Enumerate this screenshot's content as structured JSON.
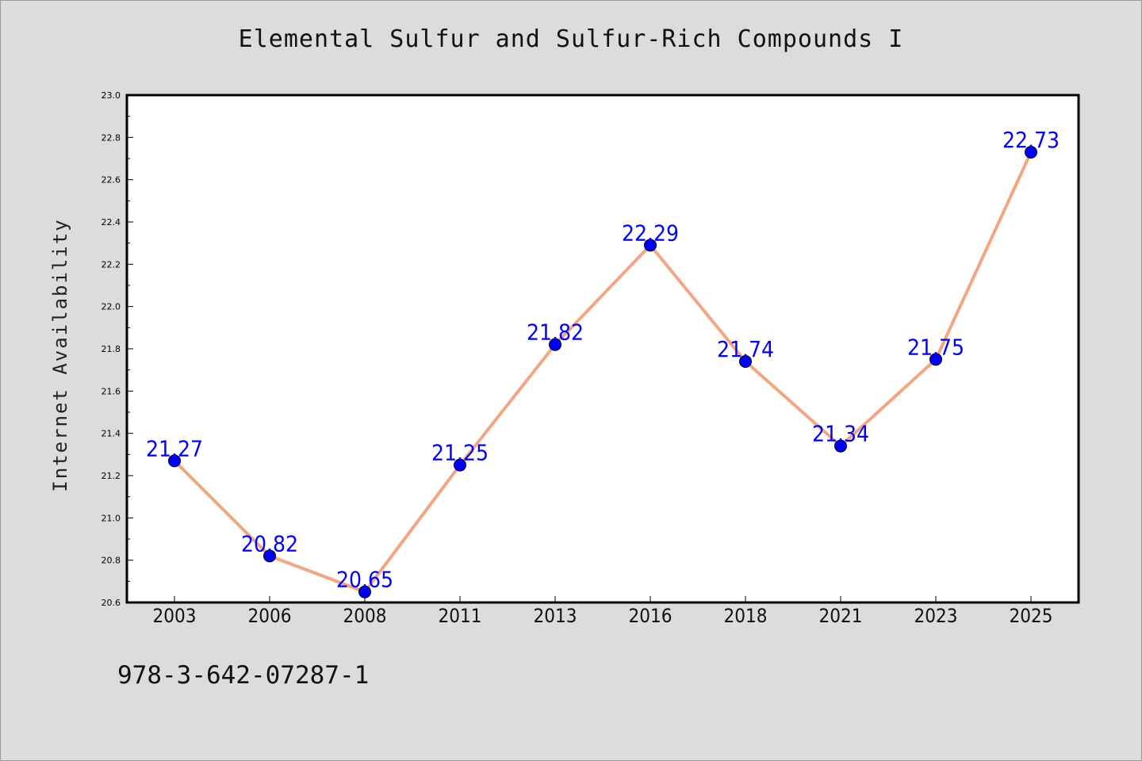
{
  "chart_data": {
    "type": "line",
    "title": "Elemental Sulfur and Sulfur-Rich Compounds I",
    "xlabel": "",
    "ylabel": "Internet Availability",
    "categories": [
      "2003",
      "2006",
      "2008",
      "2011",
      "2013",
      "2016",
      "2018",
      "2021",
      "2023",
      "2025"
    ],
    "series": [
      {
        "values": [
          21.27,
          20.82,
          20.65,
          21.25,
          21.82,
          22.29,
          21.74,
          21.34,
          21.75,
          22.73
        ],
        "data_labels": [
          "21.27",
          "20.82",
          "20.65",
          "21.25",
          "21.82",
          "22.29",
          "21.74",
          "21.34",
          "21.75",
          "22.73"
        ]
      }
    ],
    "ylim": [
      20.6,
      23.0
    ],
    "yticks": [
      "20.6",
      "20.8",
      "21.0",
      "21.2",
      "21.4",
      "21.6",
      "21.8",
      "22.0",
      "22.2",
      "22.4",
      "22.6",
      "22.8",
      "23.0"
    ],
    "grid": false,
    "legend": "none",
    "colors": {
      "line": "#f4a582",
      "marker": "#0000ff",
      "label": "#0000ff",
      "background": "#dcdcdc",
      "plot_background": "#ffffff"
    }
  },
  "footer": {
    "code": "978-3-642-07287-1"
  }
}
